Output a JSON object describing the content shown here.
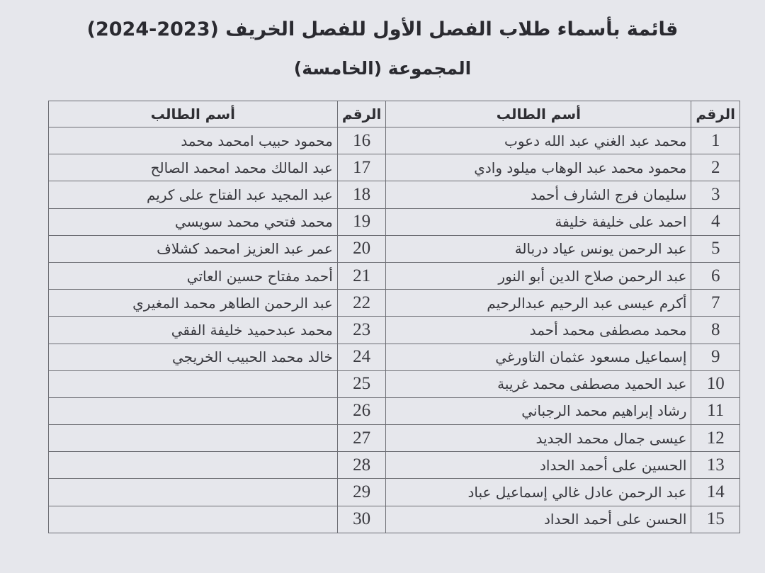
{
  "title": "قائمة بأسماء طلاب الفصل الأول للفصل الخريف (2023-2024)",
  "subtitle": "المجموعة (الخامسة)",
  "headers": {
    "number": "الرقم",
    "name": "أسم الطالب"
  },
  "rows": [
    {
      "n1": "1",
      "name1": "محمد عبد الغني عبد الله دعوب",
      "n2": "16",
      "name2": "محمود حبيب امحمد محمد"
    },
    {
      "n1": "2",
      "name1": "محمود محمد عبد الوهاب ميلود وادي",
      "n2": "17",
      "name2": "عبد المالك محمد امحمد الصالح"
    },
    {
      "n1": "3",
      "name1": "سليمان فرج الشارف أحمد",
      "n2": "18",
      "name2": "عبد المجيد عبد الفتاح على كريم"
    },
    {
      "n1": "4",
      "name1": "احمد على خليفة خليفة",
      "n2": "19",
      "name2": "محمد فتحي محمد سويسي"
    },
    {
      "n1": "5",
      "name1": "عبد الرحمن يونس عياد دربالة",
      "n2": "20",
      "name2": "عمر عبد العزيز امحمد كشلاف"
    },
    {
      "n1": "6",
      "name1": "عبد الرحمن صلاح الدين أبو النور",
      "n2": "21",
      "name2": "أحمد مفتاح حسين العاتي"
    },
    {
      "n1": "7",
      "name1": "أكرم عيسى عبد الرحيم عبدالرحيم",
      "n2": "22",
      "name2": "عبد الرحمن الطاهر محمد المغيري"
    },
    {
      "n1": "8",
      "name1": "محمد مصطفى محمد أحمد",
      "n2": "23",
      "name2": "محمد عبدحميد خليفة الفقي"
    },
    {
      "n1": "9",
      "name1": "إسماعيل مسعود عثمان التاورغي",
      "n2": "24",
      "name2": "خالد محمد الحبيب الخريجي"
    },
    {
      "n1": "10",
      "name1": "عبد الحميد مصطفى محمد غريبة",
      "n2": "25",
      "name2": ""
    },
    {
      "n1": "11",
      "name1": "رشاد إبراهيم محمد الرجباني",
      "n2": "26",
      "name2": ""
    },
    {
      "n1": "12",
      "name1": "عيسى جمال محمد الجديد",
      "n2": "27",
      "name2": ""
    },
    {
      "n1": "13",
      "name1": "الحسين على أحمد الحداد",
      "n2": "28",
      "name2": ""
    },
    {
      "n1": "14",
      "name1": "عبد الرحمن عادل غالي إسماعيل عباد",
      "n2": "29",
      "name2": ""
    },
    {
      "n1": "15",
      "name1": "الحسن على أحمد الحداد",
      "n2": "30",
      "name2": ""
    }
  ]
}
